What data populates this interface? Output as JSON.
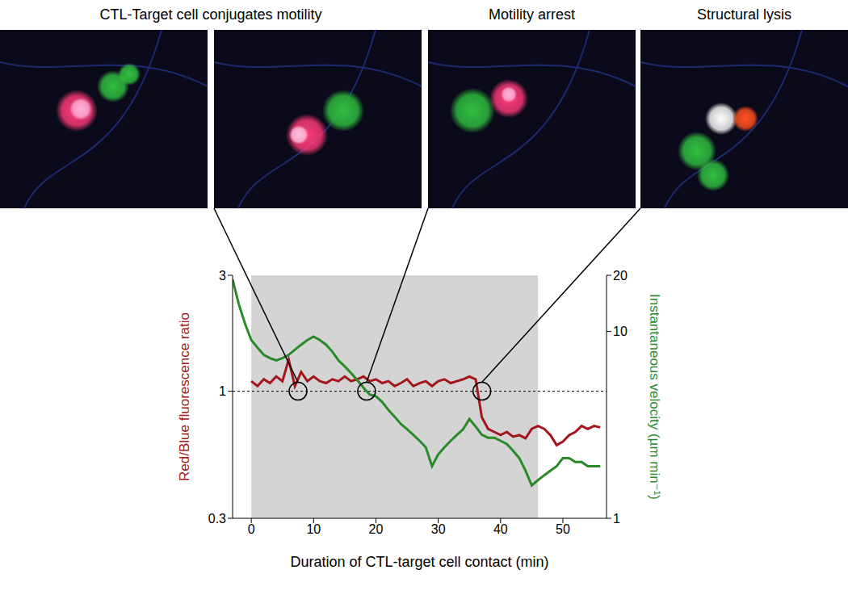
{
  "panel_titles": [
    "CTL-Target cell conjugates motility",
    "Motility arrest",
    "Structural lysis"
  ],
  "chart_data": {
    "type": "line",
    "x_label": "Duration of CTL-target cell contact (min)",
    "y_label": "Red/Blue fluorescence ratio",
    "y2_label": "Instantaneous velocity (µm min⁻¹)",
    "log": "y",
    "xlim": [
      -3,
      57
    ],
    "xticks": [
      0,
      10,
      20,
      30,
      40,
      50
    ],
    "ylim": [
      0.3,
      3
    ],
    "yticks": [
      0.3,
      1,
      3
    ],
    "y2lim": [
      1,
      20
    ],
    "y2ticks": [
      1,
      10,
      20
    ],
    "shaded_x": [
      0,
      46
    ],
    "reference_y": 1,
    "markers": [
      {
        "x": 7.5,
        "y": 1
      },
      {
        "x": 18.5,
        "y": 1
      },
      {
        "x": 37,
        "y": 1
      }
    ],
    "x": [
      -3,
      -2,
      -1,
      0,
      1,
      2,
      3,
      4,
      5,
      6,
      7,
      8,
      9,
      10,
      11,
      12,
      13,
      14,
      15,
      16,
      17,
      18,
      19,
      20,
      21,
      22,
      23,
      24,
      25,
      26,
      27,
      28,
      29,
      30,
      31,
      32,
      33,
      34,
      35,
      36,
      37,
      38,
      39,
      40,
      41,
      42,
      43,
      44,
      45,
      46,
      47,
      48,
      49,
      50,
      51,
      52,
      53,
      54,
      55,
      56
    ],
    "series": [
      {
        "name": "Red/Blue fluorescence ratio",
        "color": "#a3161c",
        "axis": "y",
        "values": [
          null,
          null,
          null,
          1.1,
          1.05,
          1.12,
          1.08,
          1.15,
          1.1,
          1.35,
          1.05,
          1.2,
          1.1,
          1.15,
          1.1,
          1.08,
          1.12,
          1.1,
          1.15,
          1.1,
          1.12,
          1.15,
          1.1,
          1.12,
          1.08,
          1.1,
          1.05,
          1.08,
          1.12,
          1.05,
          1.08,
          1.1,
          1.05,
          1.1,
          1.12,
          1.08,
          1.1,
          1.12,
          1.15,
          1.12,
          0.78,
          0.7,
          0.68,
          0.66,
          0.68,
          0.65,
          0.66,
          0.64,
          0.7,
          0.72,
          0.7,
          0.66,
          0.6,
          0.62,
          0.66,
          0.68,
          0.72,
          0.7,
          0.72,
          0.71
        ]
      },
      {
        "name": "Instantaneous velocity",
        "color": "#2a8a2a",
        "axis": "y2",
        "values": [
          19,
          14,
          11,
          9,
          8.2,
          7.5,
          7.2,
          7,
          7.2,
          7.5,
          8,
          8.5,
          9,
          9.4,
          9,
          8.5,
          7.8,
          7,
          6.5,
          6,
          5.5,
          5,
          4.6,
          4.5,
          4.2,
          3.8,
          3.5,
          3.2,
          3,
          2.8,
          2.6,
          2.4,
          1.9,
          2.2,
          2.4,
          2.6,
          2.8,
          3,
          3.4,
          3.1,
          2.8,
          2.7,
          2.7,
          2.6,
          2.5,
          2.3,
          2.1,
          1.8,
          1.5,
          1.6,
          1.7,
          1.8,
          1.9,
          2.1,
          2.1,
          2,
          2,
          1.9,
          1.9,
          1.9
        ]
      }
    ]
  }
}
